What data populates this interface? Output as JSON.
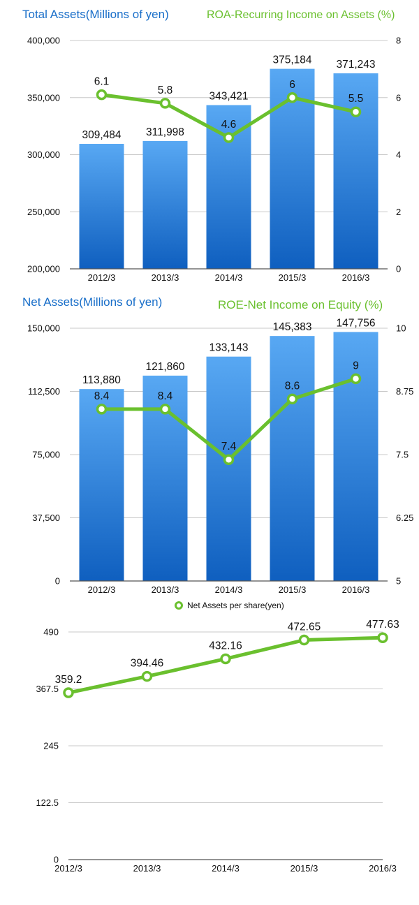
{
  "colors": {
    "blue_title": "#1a6fc9",
    "green": "#6ac02e",
    "bar_top": "#58a8f3",
    "bar_bottom": "#0f5fbf",
    "axis": "#555555",
    "grid": "#c8c8c8"
  },
  "chart_data": [
    {
      "type": "bar",
      "title": "Total Assets(Millions of yen)",
      "title_right": "ROA-Recurring Income on Assets (%)",
      "categories": [
        "2012/3",
        "2013/3",
        "2014/3",
        "2015/3",
        "2016/3"
      ],
      "series": [
        {
          "name": "Total Assets(Millions of yen)",
          "type": "bar",
          "axis": "left",
          "values": [
            309484,
            311998,
            343421,
            375184,
            371243
          ],
          "labels": [
            "309,484",
            "311,998",
            "343,421",
            "375,184",
            "371,243"
          ]
        },
        {
          "name": "ROA-Recurring Income on Assets (%)",
          "type": "line",
          "axis": "right",
          "values": [
            6.1,
            5.8,
            4.6,
            6,
            5.5
          ],
          "labels": [
            "6.1",
            "5.8",
            "4.6",
            "6",
            "5.5"
          ]
        }
      ],
      "ylim": [
        200000,
        400000
      ],
      "y_ticks": [
        "200,000",
        "250,000",
        "300,000",
        "350,000",
        "400,000"
      ],
      "y2lim": [
        0,
        8
      ],
      "y2_ticks": [
        "0",
        "2",
        "4",
        "6",
        "8"
      ],
      "grid": true
    },
    {
      "type": "bar",
      "title": "Net Assets(Millions of yen)",
      "title_right": "ROE-Net Income on Equity (%)",
      "categories": [
        "2012/3",
        "2013/3",
        "2014/3",
        "2015/3",
        "2016/3"
      ],
      "series": [
        {
          "name": "Net Assets(Millions of yen)",
          "type": "bar",
          "axis": "left",
          "values": [
            113880,
            121860,
            133143,
            145383,
            147756
          ],
          "labels": [
            "113,880",
            "121,860",
            "133,143",
            "145,383",
            "147,756"
          ]
        },
        {
          "name": "ROE-Net Income on Equity (%)",
          "type": "line",
          "axis": "right",
          "values": [
            8.4,
            8.4,
            7.4,
            8.6,
            9
          ],
          "labels": [
            "8.4",
            "8.4",
            "7.4",
            "8.6",
            "9"
          ]
        }
      ],
      "ylim": [
        0,
        150000
      ],
      "y_ticks": [
        "0",
        "37,500",
        "75,000",
        "112,500",
        "150,000"
      ],
      "y2lim": [
        5,
        10
      ],
      "y2_ticks": [
        "5",
        "6.25",
        "7.5",
        "8.75",
        "10"
      ],
      "grid": true
    },
    {
      "type": "line",
      "legend": "Net Assets per share(yen)",
      "legend_position": "top",
      "categories": [
        "2012/3",
        "2013/3",
        "2014/3",
        "2015/3",
        "2016/3"
      ],
      "series": [
        {
          "name": "Net Assets per share(yen)",
          "values": [
            359.2,
            394.46,
            432.16,
            472.65,
            477.63
          ],
          "labels": [
            "359.2",
            "394.46",
            "432.16",
            "472.65",
            "477.63"
          ]
        }
      ],
      "ylim": [
        0,
        490
      ],
      "y_ticks": [
        "0",
        "122.5",
        "245",
        "367.5",
        "490"
      ],
      "grid": true
    }
  ]
}
